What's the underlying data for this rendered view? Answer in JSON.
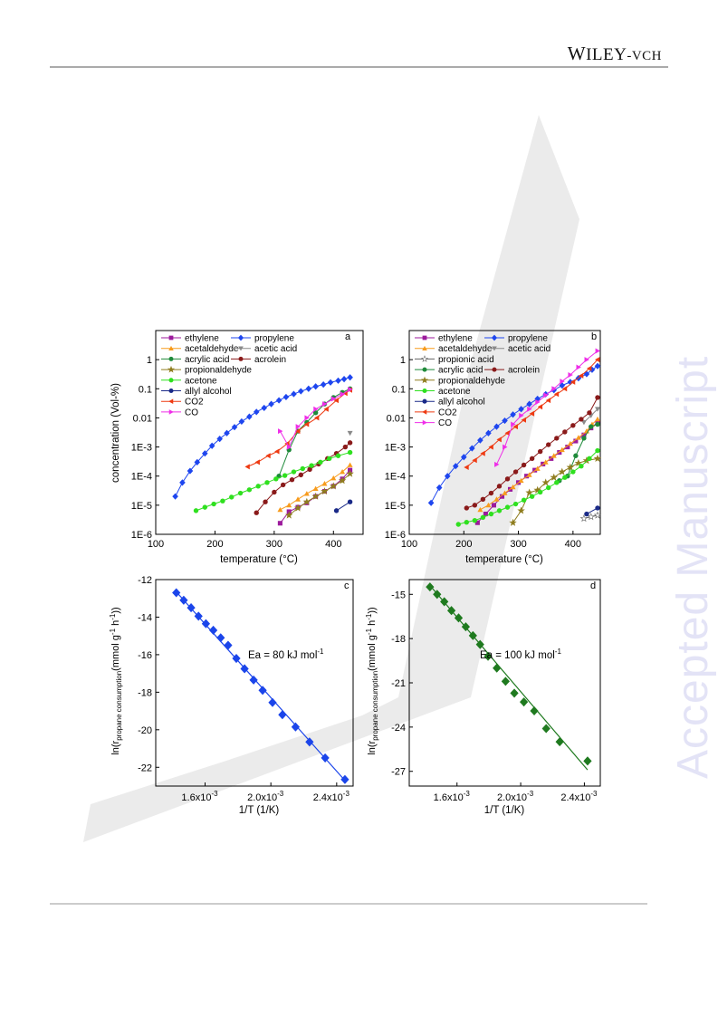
{
  "header": {
    "publisher_w": "W",
    "publisher_iley": "ILEY",
    "publisher_vch": "-VCH"
  },
  "watermark": {
    "text": "Accepted Manuscript",
    "color": "#e3e3f6"
  },
  "chart_data": [
    {
      "panel": "a",
      "type": "line",
      "y_log": true,
      "xlabel": "temperature (°C)",
      "ylabel": "concentration (Vol-%)",
      "xlim": [
        100,
        450
      ],
      "ylim_exp": [
        -6,
        1
      ],
      "x_ticks": [
        100,
        200,
        300,
        400
      ],
      "y_tick_labels": [
        "1E-6",
        "1E-5",
        "1E-4",
        "1E-3",
        "0.01",
        "0.1",
        "1"
      ],
      "legend_rows": [
        [
          "ethylene",
          "propylene"
        ],
        [
          "acetaldehyde",
          "acetic acid"
        ],
        [
          "acrylic acid",
          "acrolein"
        ],
        [
          "propionaldehyde"
        ],
        [
          "acetone"
        ],
        [
          "allyl alcohol"
        ],
        [
          "CO2"
        ],
        [
          "CO"
        ]
      ],
      "series": [
        {
          "name": "ethylene",
          "color": "#9c1a9c",
          "marker": "square",
          "x": [
            310,
            325,
            340,
            355,
            370,
            385,
            400,
            415,
            428
          ],
          "y": [
            2.4e-06,
            6e-06,
            8.5e-06,
            1.2e-05,
            2e-05,
            3e-05,
            4.5e-05,
            8e-05,
            0.00016
          ]
        },
        {
          "name": "propylene",
          "color": "#1e46ef",
          "marker": "diamond",
          "x": [
            133,
            145,
            158,
            170,
            183,
            195,
            208,
            220,
            233,
            245,
            258,
            270,
            283,
            295,
            308,
            320,
            333,
            345,
            358,
            370,
            383,
            395,
            408,
            418,
            428
          ],
          "y": [
            2e-05,
            6e-05,
            0.00015,
            0.0003,
            0.0006,
            0.0011,
            0.0019,
            0.003,
            0.0048,
            0.0075,
            0.011,
            0.016,
            0.022,
            0.03,
            0.04,
            0.052,
            0.066,
            0.082,
            0.1,
            0.12,
            0.14,
            0.165,
            0.19,
            0.215,
            0.245
          ]
        },
        {
          "name": "acetaldehyde",
          "color": "#f79b1c",
          "marker": "triangle-up",
          "x": [
            310,
            325,
            340,
            355,
            370,
            385,
            400,
            415,
            428
          ],
          "y": [
            7e-06,
            1e-05,
            1.6e-05,
            2.5e-05,
            3.7e-05,
            5.5e-05,
            8.5e-05,
            0.00014,
            0.00024
          ]
        },
        {
          "name": "acetic acid",
          "color": "#8a8a8a",
          "marker": "triangle-down",
          "x": [
            428
          ],
          "y": [
            0.003
          ]
        },
        {
          "name": "acrylic acid",
          "color": "#1f8a3a",
          "marker": "circle",
          "x": [
            308,
            325,
            340,
            355,
            370,
            385,
            400,
            415,
            428
          ],
          "y": [
            0.0001,
            0.0008,
            0.0035,
            0.007,
            0.015,
            0.03,
            0.05,
            0.075,
            0.1
          ]
        },
        {
          "name": "acrolein",
          "color": "#8a1a1a",
          "marker": "circle",
          "x": [
            270,
            285,
            300,
            315,
            330,
            345,
            360,
            375,
            390,
            405,
            420,
            428
          ],
          "y": [
            5.5e-06,
            1.3e-05,
            2.8e-05,
            5e-05,
            7.5e-05,
            0.00011,
            0.00017,
            0.00026,
            0.0004,
            0.0006,
            0.001,
            0.0014
          ]
        },
        {
          "name": "propionaldehyde",
          "color": "#8f7d1f",
          "marker": "star",
          "x": [
            325,
            340,
            355,
            370,
            385,
            400,
            415,
            428
          ],
          "y": [
            4.5e-06,
            8e-06,
            1.3e-05,
            2e-05,
            3e-05,
            4.5e-05,
            7e-05,
            0.00012
          ]
        },
        {
          "name": "acetone",
          "color": "#2fe01f",
          "marker": "circle",
          "x": [
            168,
            183,
            198,
            213,
            228,
            243,
            258,
            273,
            288,
            303,
            318,
            333,
            348,
            363,
            378,
            393,
            408,
            428
          ],
          "y": [
            6.5e-06,
            8.5e-06,
            1.1e-05,
            1.4e-05,
            1.9e-05,
            2.6e-05,
            3.4e-05,
            4.5e-05,
            6e-05,
            8e-05,
            0.000105,
            0.00014,
            0.00018,
            0.00023,
            0.0003,
            0.0004,
            0.0005,
            0.00065
          ]
        },
        {
          "name": "allyl alcohol",
          "color": "#1a2a88",
          "marker": "circle",
          "x": [
            405,
            428
          ],
          "y": [
            6.5e-06,
            1.3e-05
          ]
        },
        {
          "name": "CO2",
          "color": "#ee3a12",
          "marker": "triangle-left",
          "x": [
            255,
            272,
            290,
            305,
            322,
            340,
            355,
            372,
            388,
            405,
            420,
            428
          ],
          "y": [
            0.00021,
            0.0003,
            0.0005,
            0.0007,
            0.0013,
            0.0035,
            0.006,
            0.01,
            0.02,
            0.04,
            0.07,
            0.09
          ]
        },
        {
          "name": "CO",
          "color": "#ef2ee8",
          "marker": "triangle-right",
          "x": [
            310,
            325,
            340,
            355,
            370,
            385,
            400,
            415,
            428
          ],
          "y": [
            0.0035,
            0.001,
            0.005,
            0.01,
            0.02,
            0.03,
            0.045,
            0.065,
            0.095
          ]
        }
      ]
    },
    {
      "panel": "b",
      "type": "line",
      "y_log": true,
      "xlabel": "temperature (°C)",
      "ylabel": "",
      "xlim": [
        100,
        450
      ],
      "ylim_exp": [
        -6,
        1
      ],
      "x_ticks": [
        100,
        200,
        300,
        400
      ],
      "y_tick_labels": [
        "1E-6",
        "1E-5",
        "1E-4",
        "1E-3",
        "0.01",
        "0.1",
        "1"
      ],
      "legend_rows": [
        [
          "ethylene",
          "propylene"
        ],
        [
          "acetaldehyde",
          "acetic acid"
        ],
        [
          "propionic acid"
        ],
        [
          "acrylic acid",
          "acrolein"
        ],
        [
          "propionaldehyde"
        ],
        [
          "acetone"
        ],
        [
          "allyl alcohol"
        ],
        [
          "CO2"
        ],
        [
          "CO"
        ]
      ],
      "series": [
        {
          "name": "ethylene",
          "color": "#9c1a9c",
          "marker": "square",
          "x": [
            225,
            240,
            255,
            270,
            285,
            300,
            315,
            330,
            345,
            360,
            375,
            390,
            405,
            420,
            433,
            445
          ],
          "y": [
            2.5e-06,
            5e-06,
            1e-05,
            2e-05,
            3.5e-05,
            6e-05,
            0.0001,
            0.00016,
            0.00026,
            0.0004,
            0.00065,
            0.001,
            0.0016,
            0.0026,
            0.0045,
            0.007
          ]
        },
        {
          "name": "propylene",
          "color": "#1e46ef",
          "marker": "diamond",
          "x": [
            140,
            155,
            170,
            185,
            200,
            215,
            230,
            245,
            260,
            275,
            290,
            305,
            320,
            335,
            350,
            365,
            380,
            395,
            410,
            425,
            435,
            445
          ],
          "y": [
            1.2e-05,
            4e-05,
            0.0001,
            0.00022,
            0.00045,
            0.0009,
            0.0017,
            0.003,
            0.005,
            0.008,
            0.013,
            0.02,
            0.03,
            0.045,
            0.065,
            0.09,
            0.13,
            0.17,
            0.23,
            0.32,
            0.45,
            0.6
          ]
        },
        {
          "name": "acetaldehyde",
          "color": "#f79b1c",
          "marker": "triangle-up",
          "x": [
            230,
            245,
            260,
            275,
            290,
            305,
            320,
            335,
            350,
            365,
            380,
            395,
            410,
            425,
            435,
            445
          ],
          "y": [
            7e-06,
            1e-05,
            1.6e-05,
            2.6e-05,
            4.2e-05,
            7e-05,
            0.00011,
            0.00018,
            0.0003,
            0.0005,
            0.0008,
            0.0013,
            0.0021,
            0.0035,
            0.006,
            0.009
          ]
        },
        {
          "name": "acetic acid",
          "color": "#8a8a8a",
          "marker": "triangle-down",
          "x": [
            420,
            433,
            445
          ],
          "y": [
            0.007,
            0.012,
            0.02
          ]
        },
        {
          "name": "propionic acid",
          "color": "#666666",
          "marker": "star-open",
          "x": [
            420,
            433,
            445
          ],
          "y": [
            3.5e-06,
            4e-06,
            4.5e-06
          ]
        },
        {
          "name": "acrylic acid",
          "color": "#1f8a3a",
          "marker": "circle",
          "x": [
            375,
            390,
            405,
            420,
            433,
            445
          ],
          "y": [
            7e-05,
            0.0001,
            0.0005,
            0.002,
            0.005,
            0.006
          ]
        },
        {
          "name": "acrolein",
          "color": "#8a1a1a",
          "marker": "circle",
          "x": [
            205,
            220,
            235,
            250,
            265,
            280,
            295,
            310,
            325,
            340,
            355,
            370,
            385,
            400,
            415,
            430,
            445
          ],
          "y": [
            8e-06,
            1e-05,
            1.6e-05,
            2.6e-05,
            4.5e-05,
            8e-05,
            0.00014,
            0.00024,
            0.0004,
            0.0007,
            0.0012,
            0.002,
            0.0033,
            0.0055,
            0.009,
            0.015,
            0.05
          ]
        },
        {
          "name": "propionaldehyde",
          "color": "#8f7d1f",
          "marker": "star",
          "x": [
            290,
            305,
            320,
            335,
            350,
            365,
            380,
            395,
            410,
            425,
            445
          ],
          "y": [
            2.5e-06,
            6.5e-06,
            2.7e-05,
            3.3e-05,
            6e-05,
            9e-05,
            0.00014,
            0.0002,
            0.00028,
            0.00034,
            0.0004
          ]
        },
        {
          "name": "acetone",
          "color": "#2fe01f",
          "marker": "circle",
          "x": [
            190,
            205,
            220,
            235,
            250,
            265,
            280,
            295,
            310,
            325,
            340,
            355,
            370,
            385,
            400,
            415,
            430,
            445
          ],
          "y": [
            2.2e-06,
            2.6e-06,
            3e-06,
            3.8e-06,
            5e-06,
            6.5e-06,
            8.5e-06,
            1.1e-05,
            1.5e-05,
            2e-05,
            2.8e-05,
            4e-05,
            6e-05,
            9e-05,
            0.00014,
            0.00022,
            0.0004,
            0.00075
          ]
        },
        {
          "name": "allyl alcohol",
          "color": "#1a2a88",
          "marker": "circle",
          "x": [
            425,
            445
          ],
          "y": [
            5e-06,
            8e-06
          ]
        },
        {
          "name": "CO2",
          "color": "#ee3a12",
          "marker": "triangle-left",
          "x": [
            205,
            220,
            235,
            250,
            265,
            280,
            295,
            310,
            325,
            340,
            355,
            370,
            385,
            400,
            415,
            430,
            445
          ],
          "y": [
            0.0002,
            0.00035,
            0.0006,
            0.001,
            0.0018,
            0.003,
            0.005,
            0.0085,
            0.014,
            0.024,
            0.04,
            0.065,
            0.1,
            0.17,
            0.28,
            0.5,
            1
          ]
        },
        {
          "name": "CO",
          "color": "#ef2ee8",
          "marker": "triangle-right",
          "x": [
            260,
            275,
            290,
            305,
            320,
            335,
            350,
            365,
            380,
            395,
            410,
            425,
            445
          ],
          "y": [
            0.00025,
            0.001,
            0.006,
            0.012,
            0.02,
            0.035,
            0.06,
            0.1,
            0.18,
            0.3,
            0.55,
            1,
            2
          ]
        }
      ]
    },
    {
      "panel": "c",
      "type": "scatter",
      "xlabel": "1/T (1/K)",
      "ylabel": "",
      "xlim": [
        1.3,
        2.5
      ],
      "ylim": [
        -23,
        -12
      ],
      "x_ticks": [
        1.6,
        2.0,
        2.4
      ],
      "y_ticks": [
        -12,
        -14,
        -16,
        -18,
        -20,
        -22
      ],
      "annotation": "Ea = 80 kJ mol",
      "annotation_sup": "-1",
      "color": "#1b45ea",
      "x": [
        1.425,
        1.47,
        1.515,
        1.56,
        1.605,
        1.65,
        1.695,
        1.74,
        1.79,
        1.84,
        1.895,
        1.95,
        2.01,
        2.07,
        2.15,
        2.235,
        2.33,
        2.45
      ],
      "y": [
        -12.7,
        -13.1,
        -13.5,
        -13.95,
        -14.35,
        -14.7,
        -15.1,
        -15.5,
        -16.2,
        -16.75,
        -17.35,
        -17.9,
        -18.55,
        -19.2,
        -19.85,
        -20.65,
        -21.5,
        -22.65
      ],
      "fit": {
        "x": [
          1.425,
          2.45
        ],
        "y": [
          -12.65,
          -22.7
        ]
      }
    },
    {
      "panel": "d",
      "type": "scatter",
      "xlabel": "1/T (1/K)",
      "ylabel": "",
      "xlim": [
        1.3,
        2.5
      ],
      "ylim": [
        -28,
        -14
      ],
      "x_ticks": [
        1.6,
        2.0,
        2.4
      ],
      "y_ticks": [
        -15,
        -18,
        -21,
        -24,
        -27
      ],
      "annotation": "Ea = 100 kJ mol",
      "annotation_sup": "-1",
      "color": "#1f7a1f",
      "x": [
        1.43,
        1.475,
        1.52,
        1.565,
        1.61,
        1.655,
        1.7,
        1.745,
        1.795,
        1.85,
        1.905,
        1.96,
        2.02,
        2.085,
        2.16,
        2.245,
        2.42
      ],
      "y": [
        -14.5,
        -15.0,
        -15.5,
        -16.1,
        -16.6,
        -17.2,
        -17.8,
        -18.4,
        -19.2,
        -20.0,
        -20.9,
        -21.7,
        -22.3,
        -22.9,
        -24.1,
        -25.0,
        -26.3
      ],
      "fit": {
        "x": [
          1.43,
          2.42
        ],
        "y": [
          -14.4,
          -26.9
        ]
      }
    }
  ]
}
